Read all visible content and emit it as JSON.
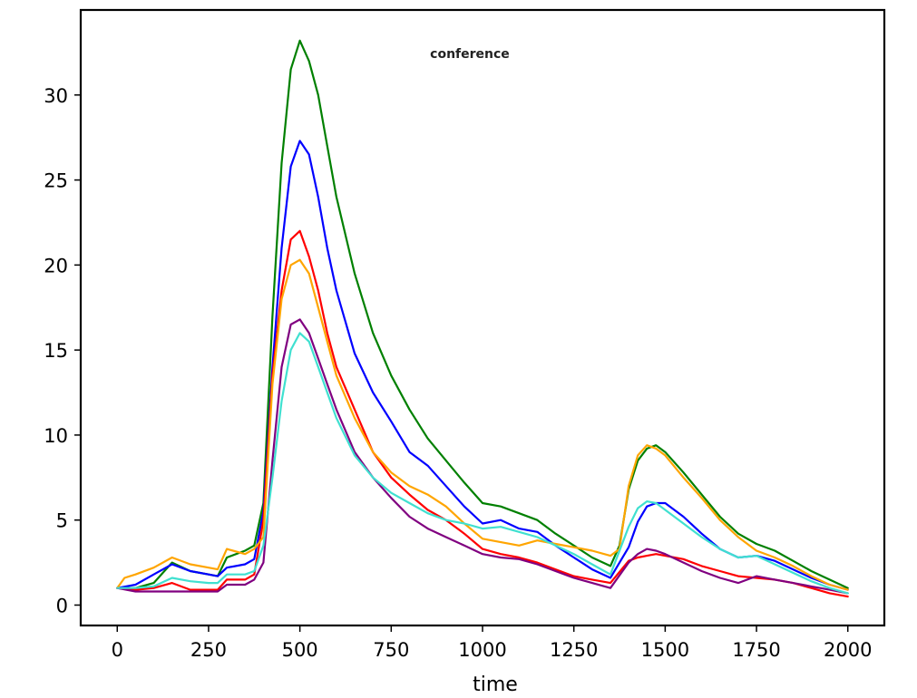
{
  "chart_data": {
    "type": "line",
    "title": "conference",
    "xlabel": "time",
    "ylabel": "",
    "xlim": [
      -100,
      2100
    ],
    "ylim": [
      -1.2,
      35
    ],
    "x_ticks": [
      0,
      250,
      500,
      750,
      1000,
      1250,
      1500,
      1750,
      2000
    ],
    "y_ticks": [
      0,
      5,
      10,
      15,
      20,
      25,
      30
    ],
    "grid": false,
    "legend": "none",
    "series": [
      {
        "color": "#008000",
        "x": [
          0,
          50,
          100,
          150,
          200,
          250,
          275,
          300,
          350,
          375,
          400,
          425,
          450,
          475,
          500,
          525,
          550,
          575,
          600,
          650,
          700,
          750,
          800,
          850,
          900,
          950,
          1000,
          1050,
          1100,
          1150,
          1200,
          1250,
          1300,
          1350,
          1375,
          1400,
          1425,
          1450,
          1475,
          1500,
          1550,
          1600,
          1650,
          1700,
          1750,
          1800,
          1850,
          1900,
          1950,
          2000
        ],
        "values": [
          1.0,
          1.0,
          1.3,
          2.5,
          2.0,
          1.8,
          1.7,
          2.8,
          3.2,
          3.5,
          6.0,
          17.0,
          26.0,
          31.5,
          33.2,
          32.0,
          30.0,
          27.0,
          24.0,
          19.5,
          16.0,
          13.5,
          11.5,
          9.8,
          8.5,
          7.2,
          6.0,
          5.8,
          5.4,
          5.0,
          4.2,
          3.5,
          2.8,
          2.3,
          3.5,
          6.8,
          8.5,
          9.2,
          9.4,
          9.0,
          7.8,
          6.5,
          5.2,
          4.2,
          3.6,
          3.2,
          2.6,
          2.0,
          1.5,
          1.0
        ]
      },
      {
        "color": "#0000ff",
        "x": [
          0,
          50,
          100,
          150,
          200,
          250,
          275,
          300,
          350,
          375,
          400,
          425,
          450,
          475,
          500,
          525,
          550,
          575,
          600,
          650,
          700,
          750,
          800,
          850,
          900,
          950,
          1000,
          1050,
          1100,
          1150,
          1200,
          1250,
          1300,
          1350,
          1400,
          1425,
          1450,
          1475,
          1500,
          1550,
          1600,
          1650,
          1700,
          1750,
          1800,
          1850,
          1900,
          1950,
          2000
        ],
        "values": [
          1.0,
          1.2,
          1.8,
          2.4,
          2.0,
          1.8,
          1.7,
          2.2,
          2.4,
          2.7,
          5.5,
          14.0,
          21.0,
          25.8,
          27.3,
          26.5,
          24.0,
          21.0,
          18.5,
          14.8,
          12.5,
          10.8,
          9.0,
          8.2,
          7.0,
          5.8,
          4.8,
          5.0,
          4.5,
          4.3,
          3.5,
          2.8,
          2.1,
          1.6,
          3.4,
          4.9,
          5.8,
          6.0,
          6.0,
          5.2,
          4.2,
          3.3,
          2.8,
          2.9,
          2.6,
          2.1,
          1.6,
          1.2,
          0.9
        ]
      },
      {
        "color": "#ff0000",
        "x": [
          0,
          50,
          100,
          150,
          200,
          250,
          275,
          300,
          350,
          375,
          400,
          425,
          450,
          475,
          500,
          525,
          550,
          575,
          600,
          650,
          700,
          750,
          800,
          850,
          900,
          950,
          1000,
          1050,
          1100,
          1150,
          1200,
          1250,
          1300,
          1350,
          1400,
          1425,
          1450,
          1475,
          1500,
          1550,
          1600,
          1650,
          1700,
          1750,
          1800,
          1850,
          1900,
          1950,
          2000
        ],
        "values": [
          1.0,
          0.9,
          1.0,
          1.3,
          0.9,
          0.9,
          0.9,
          1.5,
          1.5,
          1.8,
          5.0,
          13.5,
          18.5,
          21.5,
          22.0,
          20.5,
          18.5,
          16.0,
          14.0,
          11.5,
          9.0,
          7.5,
          6.5,
          5.6,
          5.0,
          4.2,
          3.3,
          3.0,
          2.8,
          2.5,
          2.1,
          1.7,
          1.5,
          1.3,
          2.6,
          2.8,
          2.9,
          3.0,
          2.9,
          2.7,
          2.3,
          2.0,
          1.7,
          1.6,
          1.5,
          1.3,
          1.0,
          0.7,
          0.5
        ]
      },
      {
        "color": "#ffa500",
        "x": [
          0,
          20,
          50,
          100,
          150,
          200,
          250,
          275,
          300,
          350,
          375,
          400,
          425,
          450,
          475,
          500,
          525,
          550,
          575,
          600,
          650,
          700,
          750,
          800,
          850,
          900,
          950,
          1000,
          1050,
          1100,
          1150,
          1200,
          1250,
          1300,
          1350,
          1375,
          1400,
          1425,
          1450,
          1475,
          1500,
          1550,
          1600,
          1650,
          1700,
          1750,
          1800,
          1850,
          1900,
          1950,
          2000
        ],
        "values": [
          1.0,
          1.6,
          1.8,
          2.2,
          2.8,
          2.4,
          2.2,
          2.1,
          3.3,
          3.0,
          3.3,
          4.0,
          13.0,
          18.0,
          20.0,
          20.3,
          19.5,
          17.5,
          15.5,
          13.5,
          11.0,
          9.0,
          7.8,
          7.0,
          6.5,
          5.8,
          4.8,
          3.9,
          3.7,
          3.5,
          3.8,
          3.6,
          3.4,
          3.2,
          2.9,
          3.3,
          7.0,
          8.8,
          9.4,
          9.2,
          8.8,
          7.5,
          6.3,
          5.0,
          4.0,
          3.2,
          2.8,
          2.3,
          1.7,
          1.2,
          0.9
        ]
      },
      {
        "color": "#800080",
        "x": [
          0,
          50,
          100,
          150,
          200,
          250,
          275,
          300,
          350,
          375,
          400,
          425,
          450,
          475,
          500,
          525,
          550,
          575,
          600,
          650,
          700,
          750,
          800,
          850,
          900,
          950,
          1000,
          1050,
          1100,
          1150,
          1200,
          1250,
          1300,
          1350,
          1400,
          1425,
          1450,
          1475,
          1500,
          1550,
          1600,
          1650,
          1700,
          1750,
          1800,
          1850,
          1900,
          1950,
          2000
        ],
        "values": [
          1.0,
          0.8,
          0.8,
          0.8,
          0.8,
          0.8,
          0.8,
          1.2,
          1.2,
          1.5,
          2.5,
          8.5,
          14.0,
          16.5,
          16.8,
          16.0,
          14.5,
          13.0,
          11.5,
          9.0,
          7.5,
          6.3,
          5.2,
          4.5,
          4.0,
          3.5,
          3.0,
          2.8,
          2.7,
          2.4,
          2.0,
          1.6,
          1.3,
          1.0,
          2.5,
          3.0,
          3.3,
          3.2,
          3.0,
          2.5,
          2.0,
          1.6,
          1.3,
          1.7,
          1.5,
          1.3,
          1.1,
          0.9,
          0.7
        ]
      },
      {
        "color": "#40e0d0",
        "x": [
          0,
          50,
          100,
          150,
          200,
          250,
          275,
          300,
          350,
          375,
          400,
          425,
          450,
          475,
          500,
          525,
          550,
          575,
          600,
          650,
          700,
          750,
          800,
          850,
          900,
          950,
          1000,
          1050,
          1100,
          1150,
          1200,
          1250,
          1300,
          1350,
          1400,
          1425,
          1450,
          1475,
          1500,
          1550,
          1600,
          1650,
          1700,
          1750,
          1800,
          1850,
          1900,
          1950,
          2000
        ],
        "values": [
          1.0,
          1.0,
          1.1,
          1.6,
          1.4,
          1.3,
          1.3,
          1.8,
          1.8,
          2.0,
          3.5,
          7.5,
          12.0,
          15.0,
          16.0,
          15.5,
          14.0,
          12.5,
          11.0,
          8.8,
          7.5,
          6.6,
          6.0,
          5.4,
          5.0,
          4.8,
          4.5,
          4.6,
          4.3,
          4.0,
          3.5,
          3.0,
          2.4,
          1.8,
          4.6,
          5.7,
          6.1,
          6.0,
          5.6,
          4.8,
          4.0,
          3.3,
          2.8,
          2.9,
          2.4,
          1.9,
          1.4,
          1.0,
          0.7
        ]
      }
    ]
  }
}
